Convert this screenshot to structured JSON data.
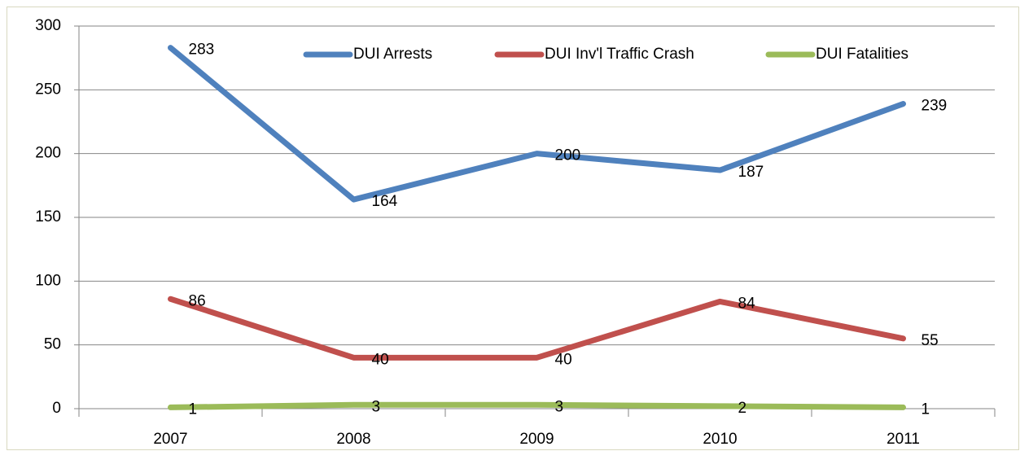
{
  "chart_data": {
    "type": "line",
    "categories": [
      "2007",
      "2008",
      "2009",
      "2010",
      "2011"
    ],
    "series": [
      {
        "name": "DUI Arrests",
        "color": "#4f81bd",
        "values": [
          283,
          164,
          200,
          187,
          239
        ]
      },
      {
        "name": "DUI Inv'l Traffic Crash",
        "color": "#c0504d",
        "values": [
          86,
          40,
          40,
          84,
          55
        ]
      },
      {
        "name": "DUI Fatalities",
        "color": "#9bbb59",
        "values": [
          1,
          3,
          3,
          2,
          1
        ]
      }
    ],
    "ylim": [
      0,
      300
    ],
    "yticks": [
      0,
      50,
      100,
      150,
      200,
      250,
      300
    ],
    "grid": true,
    "legend": "top"
  }
}
